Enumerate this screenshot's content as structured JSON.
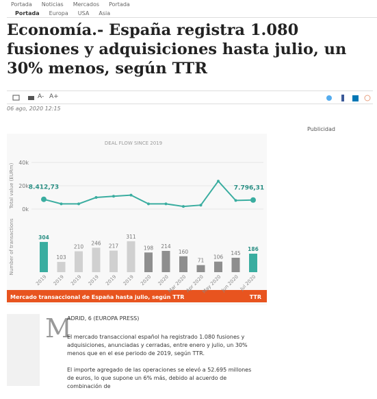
{
  "topnav": [
    "Portada",
    "Noticias",
    "Mercados",
    "Portada"
  ],
  "subnav": [
    "Portada",
    "Europa",
    "USA",
    "Asia"
  ],
  "title": "Economía.- España registra 1.080 fusiones y adquisiciones hasta julio, un 30% menos, según TTR",
  "tools": [
    "A-",
    "A+"
  ],
  "date": "06 ago, 2020 12:15",
  "ad_label": "Publicidad",
  "figure": {
    "type": "bar_line",
    "title": "DEAL FLOW SINCE 2019",
    "line_axis_label": "Total value (EURm)",
    "bar_axis_label": "Number of transactions",
    "categories": [
      "2019",
      "2019",
      "2019",
      "2019",
      "2019",
      "2019",
      "2020",
      "2020",
      "Mar 2020",
      "Apr 2020",
      "May 2020",
      "Jun 2020",
      "Jul 2020"
    ],
    "line": {
      "name": "Total value (EURm)",
      "color": "#3aada0",
      "values": [
        8412.73,
        4500,
        4500,
        10000,
        11000,
        12000,
        4500,
        4500,
        2300,
        3400,
        24000,
        7400,
        7796.31
      ],
      "value_labels": [
        "8.412,73",
        null,
        null,
        null,
        null,
        null,
        null,
        null,
        null,
        null,
        null,
        null,
        "7.796,31"
      ]
    },
    "bars": {
      "name": "Number of transactions",
      "values": [
        304,
        103,
        210,
        246,
        217,
        311,
        198,
        214,
        160,
        71,
        106,
        145,
        186
      ],
      "colors": [
        "#3aada0",
        "#d0d0d0",
        "#d0d0d0",
        "#d0d0d0",
        "#d0d0d0",
        "#d0d0d0",
        "#8e8e8e",
        "#8e8e8e",
        "#8e8e8e",
        "#8e8e8e",
        "#8e8e8e",
        "#8e8e8e",
        "#3aada0"
      ]
    },
    "ylim": [
      0,
      40000
    ],
    "yticks": [
      {
        "value": 0,
        "label": "0k"
      },
      {
        "value": 20000,
        "label": "20k"
      },
      {
        "value": 40000,
        "label": "40k"
      }
    ],
    "caption": "Mercado transaccional de España hasta julio, según TTR",
    "source": "TTR"
  },
  "article": {
    "dropcap": "M",
    "dateline": "ADRID, 6 (EUROPA PRESS)",
    "paragraphs": [
      "El mercado transaccional español ha registrado 1.080 fusiones y adquisiciones, anunciadas y cerradas, entre enero y julio, un 30% menos que en el ese periodo de 2019, según TTR.",
      "El importe agregado de las operaciones se elevó a 52.695 millones de euros, lo que supone un 6% más, debido al acuerdo de combinación de"
    ]
  }
}
